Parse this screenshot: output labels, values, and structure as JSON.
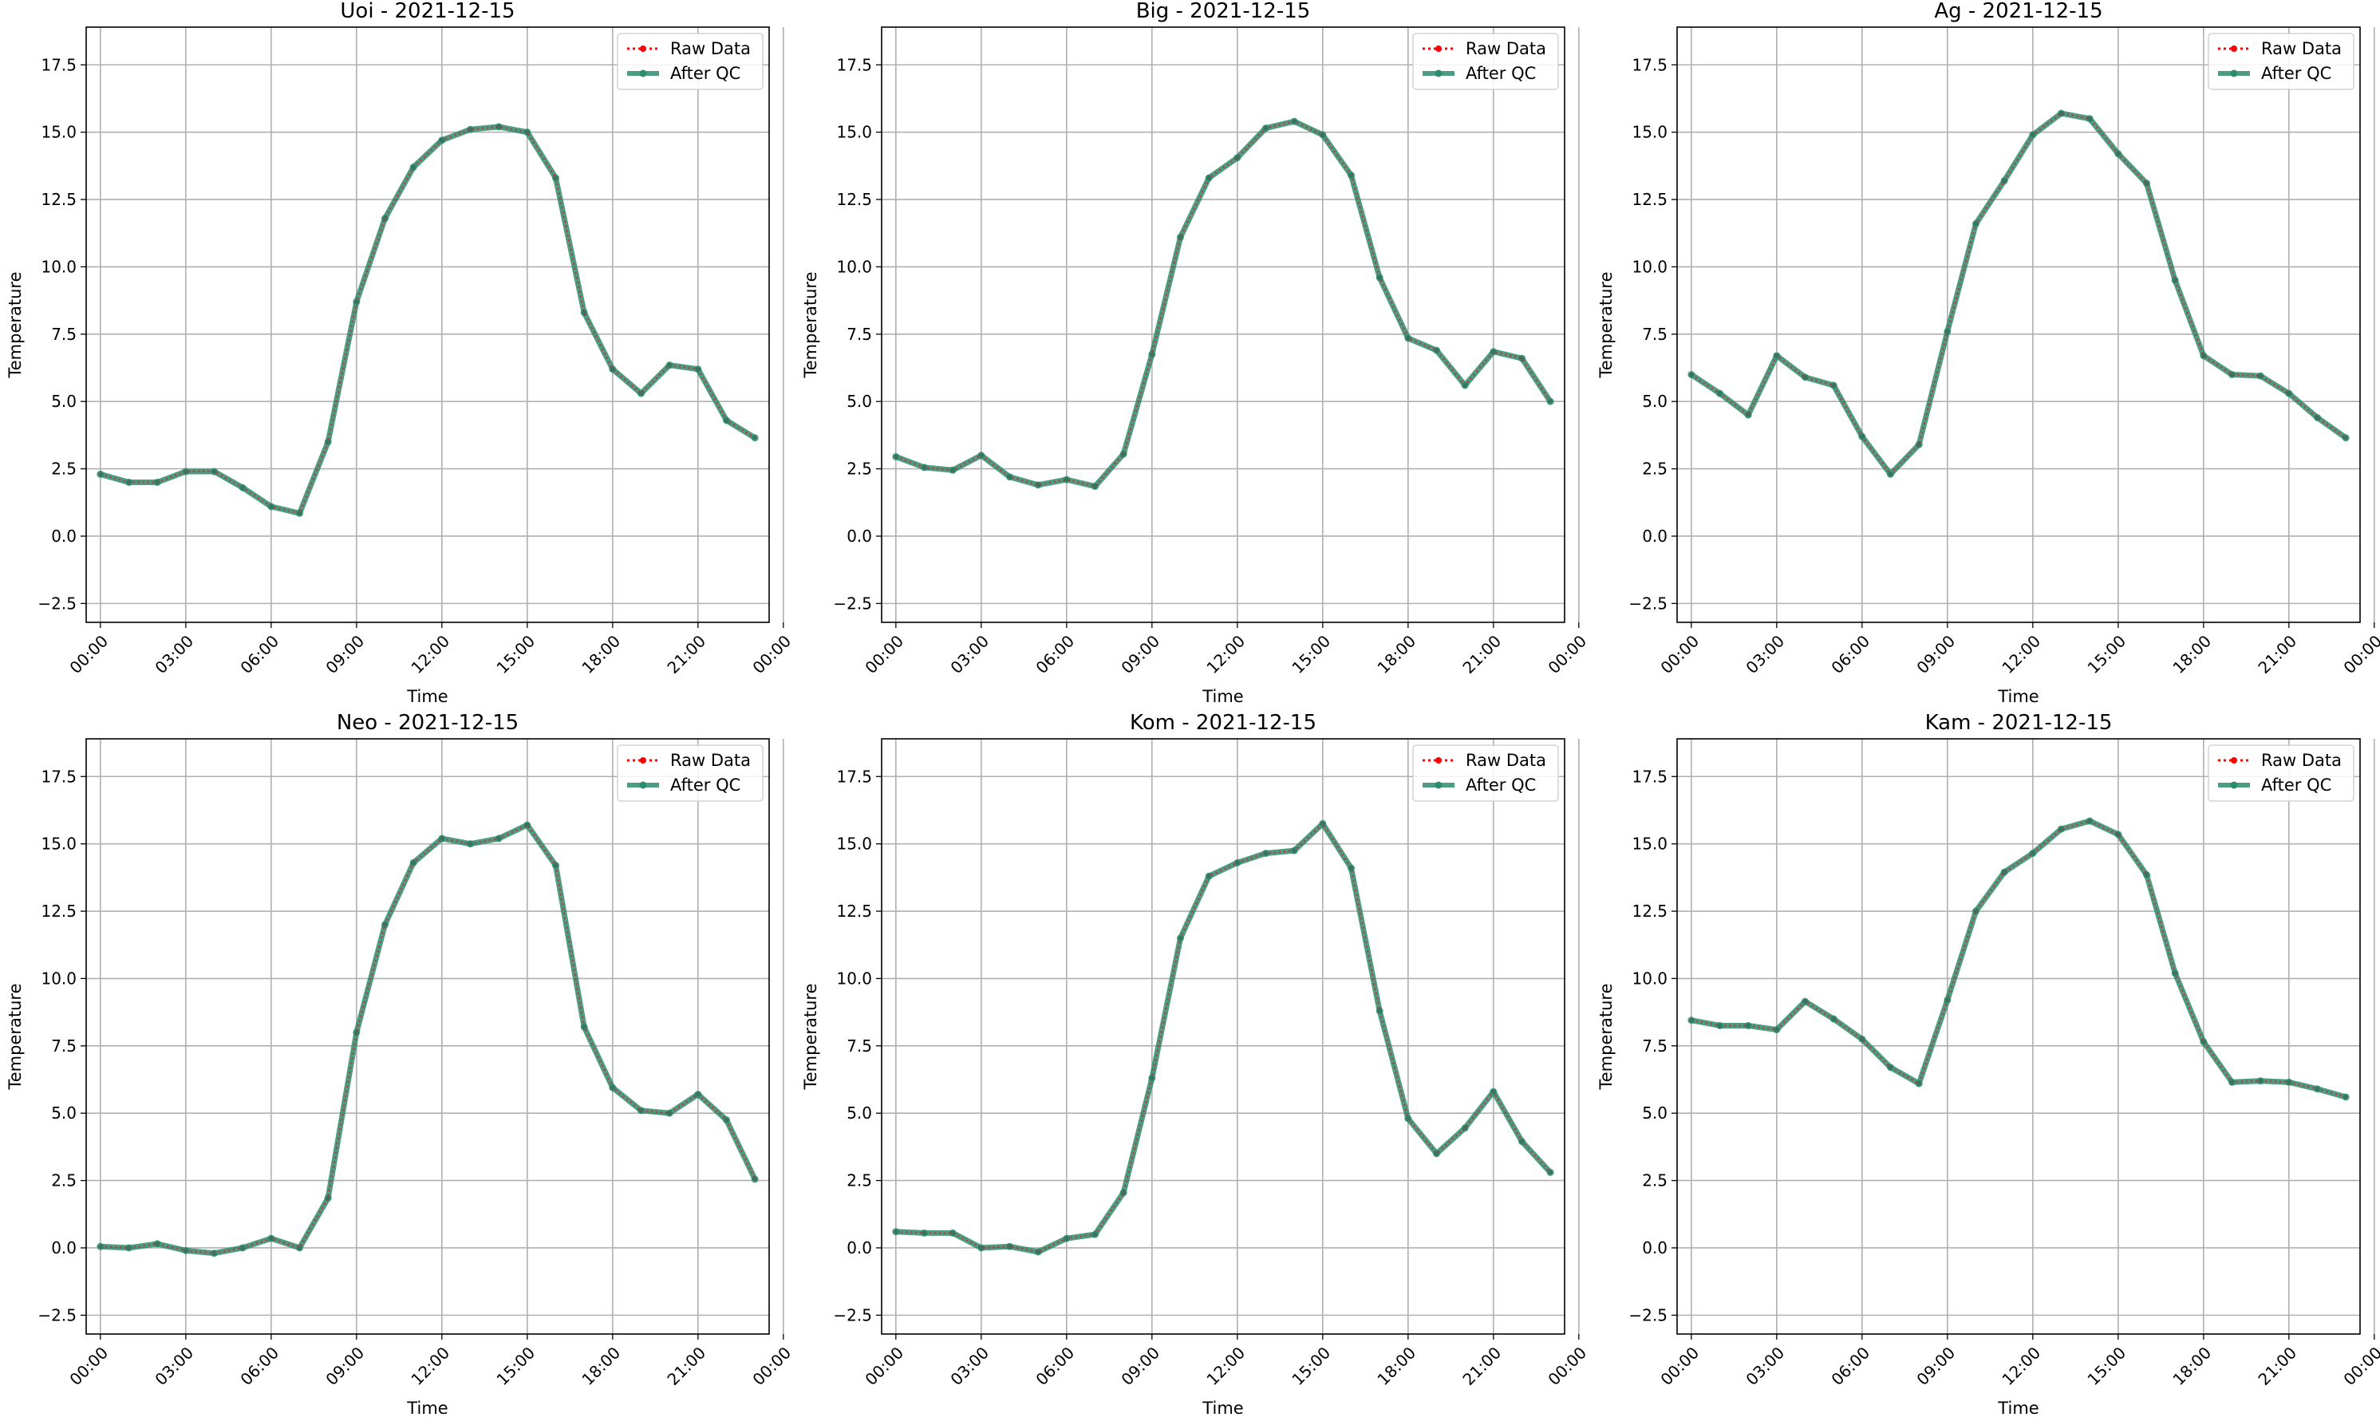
{
  "chart_data": [
    {
      "type": "line",
      "title": "Uoi - 2021-12-15",
      "xlabel": "Time",
      "ylabel": "Temperature",
      "x": [
        "00:00",
        "01:00",
        "02:00",
        "03:00",
        "04:00",
        "05:00",
        "06:00",
        "07:00",
        "08:00",
        "09:00",
        "10:00",
        "11:00",
        "12:00",
        "13:00",
        "14:00",
        "15:00",
        "16:00",
        "17:00",
        "18:00",
        "19:00",
        "20:00",
        "21:00",
        "22:00",
        "23:00"
      ],
      "xticks": [
        "00:00",
        "03:00",
        "06:00",
        "09:00",
        "12:00",
        "15:00",
        "18:00",
        "21:00",
        "00:00"
      ],
      "yticks": [
        "−2.5",
        "0.0",
        "2.5",
        "5.0",
        "7.5",
        "10.0",
        "12.5",
        "15.0",
        "17.5"
      ],
      "ylim": [
        -3.2,
        18.9
      ],
      "grid": true,
      "legend_position": "top-right",
      "series": [
        {
          "name": "Raw Data",
          "color": "#ff0000",
          "values": [
            2.3,
            2.0,
            2.0,
            2.4,
            2.4,
            1.8,
            1.1,
            0.85,
            3.5,
            8.7,
            11.8,
            13.7,
            14.7,
            15.1,
            15.2,
            15.0,
            13.3,
            8.3,
            6.2,
            5.3,
            6.35,
            6.2,
            4.3,
            3.65
          ]
        },
        {
          "name": "After QC",
          "color": "#2e8b6e",
          "values": [
            2.3,
            2.0,
            2.0,
            2.4,
            2.4,
            1.8,
            1.1,
            0.85,
            3.5,
            8.7,
            11.8,
            13.7,
            14.7,
            15.1,
            15.2,
            15.0,
            13.3,
            8.3,
            6.2,
            5.3,
            6.35,
            6.2,
            4.3,
            3.65
          ]
        }
      ]
    },
    {
      "type": "line",
      "title": "Big - 2021-12-15",
      "xlabel": "Time",
      "ylabel": "Temperature",
      "x": [
        "00:00",
        "01:00",
        "02:00",
        "03:00",
        "04:00",
        "05:00",
        "06:00",
        "07:00",
        "08:00",
        "09:00",
        "10:00",
        "11:00",
        "12:00",
        "13:00",
        "14:00",
        "15:00",
        "16:00",
        "17:00",
        "18:00",
        "19:00",
        "20:00",
        "21:00",
        "22:00",
        "23:00"
      ],
      "xticks": [
        "00:00",
        "03:00",
        "06:00",
        "09:00",
        "12:00",
        "15:00",
        "18:00",
        "21:00",
        "00:00"
      ],
      "yticks": [
        "−2.5",
        "0.0",
        "2.5",
        "5.0",
        "7.5",
        "10.0",
        "12.5",
        "15.0",
        "17.5"
      ],
      "ylim": [
        -3.2,
        18.9
      ],
      "grid": true,
      "legend_position": "top-right",
      "series": [
        {
          "name": "Raw Data",
          "color": "#ff0000",
          "values": [
            2.95,
            2.55,
            2.45,
            3.0,
            2.2,
            1.9,
            2.1,
            1.85,
            3.05,
            6.75,
            11.1,
            13.3,
            14.05,
            15.15,
            15.4,
            14.9,
            13.4,
            9.6,
            7.35,
            6.9,
            5.6,
            6.85,
            6.6,
            5.0
          ]
        },
        {
          "name": "After QC",
          "color": "#2e8b6e",
          "values": [
            2.95,
            2.55,
            2.45,
            3.0,
            2.2,
            1.9,
            2.1,
            1.85,
            3.05,
            6.75,
            11.1,
            13.3,
            14.05,
            15.15,
            15.4,
            14.9,
            13.4,
            9.6,
            7.35,
            6.9,
            5.6,
            6.85,
            6.6,
            5.0
          ]
        }
      ]
    },
    {
      "type": "line",
      "title": "Ag - 2021-12-15",
      "xlabel": "Time",
      "ylabel": "Temperature",
      "x": [
        "00:00",
        "01:00",
        "02:00",
        "03:00",
        "04:00",
        "05:00",
        "06:00",
        "07:00",
        "08:00",
        "09:00",
        "10:00",
        "11:00",
        "12:00",
        "13:00",
        "14:00",
        "15:00",
        "16:00",
        "17:00",
        "18:00",
        "19:00",
        "20:00",
        "21:00",
        "22:00",
        "23:00"
      ],
      "xticks": [
        "00:00",
        "03:00",
        "06:00",
        "09:00",
        "12:00",
        "15:00",
        "18:00",
        "21:00",
        "00:00"
      ],
      "yticks": [
        "−2.5",
        "0.0",
        "2.5",
        "5.0",
        "7.5",
        "10.0",
        "12.5",
        "15.0",
        "17.5"
      ],
      "ylim": [
        -3.2,
        18.9
      ],
      "grid": true,
      "legend_position": "top-right",
      "series": [
        {
          "name": "Raw Data",
          "color": "#ff0000",
          "values": [
            6.0,
            5.3,
            4.5,
            6.7,
            5.9,
            5.6,
            3.7,
            2.3,
            3.4,
            7.6,
            11.6,
            13.2,
            14.9,
            15.7,
            15.5,
            14.2,
            13.1,
            9.5,
            6.7,
            6.0,
            5.95,
            5.3,
            4.4,
            3.65
          ]
        },
        {
          "name": "After QC",
          "color": "#2e8b6e",
          "values": [
            6.0,
            5.3,
            4.5,
            6.7,
            5.9,
            5.6,
            3.7,
            2.3,
            3.4,
            7.6,
            11.6,
            13.2,
            14.9,
            15.7,
            15.5,
            14.2,
            13.1,
            9.5,
            6.7,
            6.0,
            5.95,
            5.3,
            4.4,
            3.65
          ]
        }
      ]
    },
    {
      "type": "line",
      "title": "Neo - 2021-12-15",
      "xlabel": "Time",
      "ylabel": "Temperature",
      "x": [
        "00:00",
        "01:00",
        "02:00",
        "03:00",
        "04:00",
        "05:00",
        "06:00",
        "07:00",
        "08:00",
        "09:00",
        "10:00",
        "11:00",
        "12:00",
        "13:00",
        "14:00",
        "15:00",
        "16:00",
        "17:00",
        "18:00",
        "19:00",
        "20:00",
        "21:00",
        "22:00",
        "23:00"
      ],
      "xticks": [
        "00:00",
        "03:00",
        "06:00",
        "09:00",
        "12:00",
        "15:00",
        "18:00",
        "21:00",
        "00:00"
      ],
      "yticks": [
        "−2.5",
        "0.0",
        "2.5",
        "5.0",
        "7.5",
        "10.0",
        "12.5",
        "15.0",
        "17.5"
      ],
      "ylim": [
        -3.2,
        18.9
      ],
      "grid": true,
      "legend_position": "top-right",
      "series": [
        {
          "name": "Raw Data",
          "color": "#ff0000",
          "values": [
            0.05,
            0.0,
            0.15,
            -0.1,
            -0.2,
            0.0,
            0.35,
            0.0,
            1.85,
            8.0,
            12.0,
            14.3,
            15.2,
            15.0,
            15.2,
            15.7,
            14.2,
            8.2,
            5.95,
            5.1,
            5.0,
            5.7,
            4.75,
            2.55
          ]
        },
        {
          "name": "After QC",
          "color": "#2e8b6e",
          "values": [
            0.05,
            0.0,
            0.15,
            -0.1,
            -0.2,
            0.0,
            0.35,
            0.0,
            1.85,
            8.0,
            12.0,
            14.3,
            15.2,
            15.0,
            15.2,
            15.7,
            14.2,
            8.2,
            5.95,
            5.1,
            5.0,
            5.7,
            4.75,
            2.55
          ]
        }
      ]
    },
    {
      "type": "line",
      "title": "Kom - 2021-12-15",
      "xlabel": "Time",
      "ylabel": "Temperature",
      "x": [
        "00:00",
        "01:00",
        "02:00",
        "03:00",
        "04:00",
        "05:00",
        "06:00",
        "07:00",
        "08:00",
        "09:00",
        "10:00",
        "11:00",
        "12:00",
        "13:00",
        "14:00",
        "15:00",
        "16:00",
        "17:00",
        "18:00",
        "19:00",
        "20:00",
        "21:00",
        "22:00",
        "23:00"
      ],
      "xticks": [
        "00:00",
        "03:00",
        "06:00",
        "09:00",
        "12:00",
        "15:00",
        "18:00",
        "21:00",
        "00:00"
      ],
      "yticks": [
        "−2.5",
        "0.0",
        "2.5",
        "5.0",
        "7.5",
        "10.0",
        "12.5",
        "15.0",
        "17.5"
      ],
      "ylim": [
        -3.2,
        18.9
      ],
      "grid": true,
      "legend_position": "top-right",
      "series": [
        {
          "name": "Raw Data",
          "color": "#ff0000",
          "values": [
            0.6,
            0.55,
            0.55,
            0.0,
            0.05,
            -0.15,
            0.35,
            0.5,
            2.05,
            6.3,
            11.5,
            13.8,
            14.3,
            14.65,
            14.75,
            15.75,
            14.1,
            8.8,
            4.8,
            3.5,
            4.45,
            5.8,
            3.95,
            2.8
          ]
        },
        {
          "name": "After QC",
          "color": "#2e8b6e",
          "values": [
            0.6,
            0.55,
            0.55,
            0.0,
            0.05,
            -0.15,
            0.35,
            0.5,
            2.05,
            6.3,
            11.5,
            13.8,
            14.3,
            14.65,
            14.75,
            15.75,
            14.1,
            8.8,
            4.8,
            3.5,
            4.45,
            5.8,
            3.95,
            2.8
          ]
        }
      ]
    },
    {
      "type": "line",
      "title": "Kam - 2021-12-15",
      "xlabel": "Time",
      "ylabel": "Temperature",
      "x": [
        "00:00",
        "01:00",
        "02:00",
        "03:00",
        "04:00",
        "05:00",
        "06:00",
        "07:00",
        "08:00",
        "09:00",
        "10:00",
        "11:00",
        "12:00",
        "13:00",
        "14:00",
        "15:00",
        "16:00",
        "17:00",
        "18:00",
        "19:00",
        "20:00",
        "21:00",
        "22:00",
        "23:00"
      ],
      "xticks": [
        "00:00",
        "03:00",
        "06:00",
        "09:00",
        "12:00",
        "15:00",
        "18:00",
        "21:00",
        "00:00"
      ],
      "yticks": [
        "−2.5",
        "0.0",
        "2.5",
        "5.0",
        "7.5",
        "10.0",
        "12.5",
        "15.0",
        "17.5"
      ],
      "ylim": [
        -3.2,
        18.9
      ],
      "grid": true,
      "legend_position": "top-right",
      "series": [
        {
          "name": "Raw Data",
          "color": "#ff0000",
          "values": [
            8.45,
            8.25,
            8.25,
            8.1,
            9.15,
            8.5,
            7.75,
            6.7,
            6.1,
            9.2,
            12.5,
            13.95,
            14.65,
            15.55,
            15.85,
            15.35,
            13.85,
            10.2,
            7.65,
            6.15,
            6.2,
            6.15,
            5.9,
            5.6
          ]
        },
        {
          "name": "After QC",
          "color": "#2e8b6e",
          "values": [
            8.45,
            8.25,
            8.25,
            8.1,
            9.15,
            8.5,
            7.75,
            6.7,
            6.1,
            9.2,
            12.5,
            13.95,
            14.65,
            15.55,
            15.85,
            15.35,
            13.85,
            10.2,
            7.65,
            6.15,
            6.2,
            6.15,
            5.9,
            5.6
          ]
        }
      ]
    }
  ]
}
